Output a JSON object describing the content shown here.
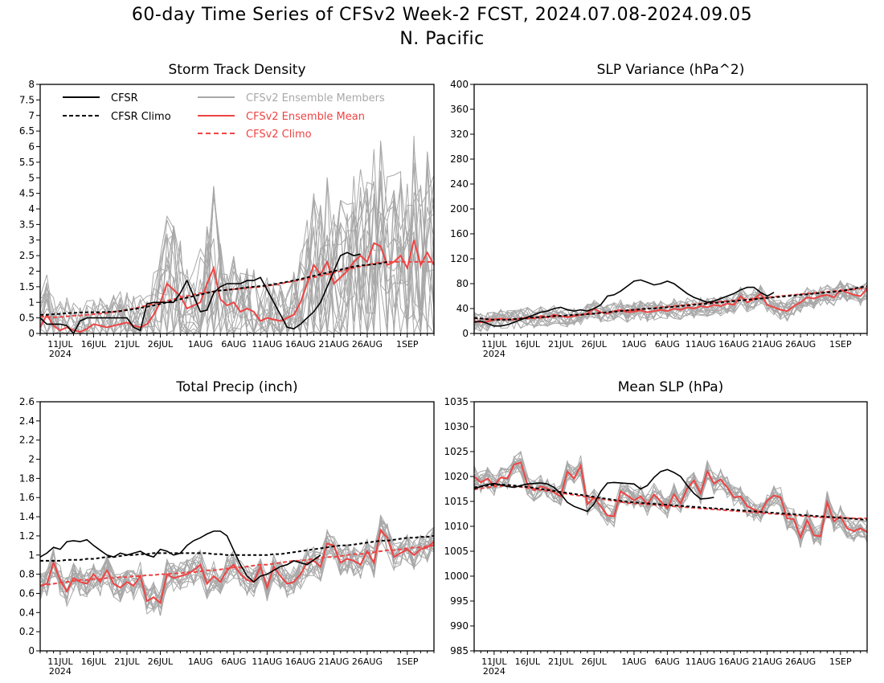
{
  "header": {
    "title": "60-day Time Series of CFSv2 Week-2 FCST, 2024.07.08-2024.09.05",
    "subtitle": "N. Pacific"
  },
  "colors": {
    "obs": "#000000",
    "members": "#a8a8a8",
    "mean": "#ee4444",
    "climo_model": "#ee4444",
    "climo_obs": "#000000"
  },
  "chart_data": [
    {
      "type": "line",
      "title": "Storm Track Density",
      "x_date_ticks": [
        "11JUL",
        "16JUL",
        "21JUL",
        "26JUL",
        "1AUG",
        "6AUG",
        "11AUG",
        "16AUG",
        "21AUG",
        "26AUG",
        "1SEP"
      ],
      "x_year_label": "2024",
      "xlim": [
        "2024-07-08",
        "2024-09-05"
      ],
      "ylim": [
        0,
        8
      ],
      "yticks": [
        "0",
        "0.5",
        "1",
        "1.5",
        "2",
        "2.5",
        "3",
        "3.5",
        "4",
        "4.5",
        "5",
        "5.5",
        "6",
        "6.5",
        "7",
        "7.5",
        "8"
      ],
      "legend": {
        "placement": "top-left",
        "entries": [
          {
            "label": "CFSR",
            "key": "obs"
          },
          {
            "label": "CFSR Climo",
            "key": "climo_obs"
          },
          {
            "label": "CFSv2 Ensemble Members",
            "key": "members"
          },
          {
            "label": "CFSv2 Ensemble Mean",
            "key": "mean"
          },
          {
            "label": "CFSv2 Climo",
            "key": "climo_model"
          }
        ]
      },
      "series": {
        "obs": [
          0.5,
          0.3,
          0.3,
          0.3,
          0.25,
          0.0,
          0.4,
          0.5,
          0.5,
          0.5,
          0.5,
          0.5,
          0.5,
          0.5,
          0.2,
          0.1,
          0.95,
          1.0,
          1.0,
          1.0,
          1.0,
          1.3,
          1.7,
          1.2,
          0.7,
          0.75,
          1.3,
          1.5,
          1.6,
          1.6,
          1.6,
          1.7,
          1.7,
          1.8,
          1.4,
          1.0,
          0.6,
          0.2,
          0.15,
          0.3,
          0.5,
          0.7,
          1.0,
          1.5,
          2.0,
          2.5,
          2.6,
          2.5,
          2.55
        ],
        "obs_climo": [
          0.6,
          0.6,
          0.62,
          0.63,
          0.65,
          0.66,
          0.67,
          0.68,
          0.68,
          0.68,
          0.69,
          0.7,
          0.72,
          0.75,
          0.78,
          0.82,
          0.86,
          0.9,
          0.95,
          1.0,
          1.05,
          1.1,
          1.15,
          1.2,
          1.25,
          1.3,
          1.35,
          1.38,
          1.4,
          1.42,
          1.45,
          1.48,
          1.5,
          1.52,
          1.55,
          1.58,
          1.62,
          1.66,
          1.7,
          1.75,
          1.8,
          1.85,
          1.9,
          1.95,
          2.0,
          2.05,
          2.1,
          2.15,
          2.18,
          2.2,
          2.22,
          2.25,
          2.3
        ],
        "model_climo": [
          0.55,
          0.53,
          0.52,
          0.53,
          0.55,
          0.57,
          0.58,
          0.6,
          0.62,
          0.64,
          0.66,
          0.69,
          0.72,
          0.76,
          0.8,
          0.85,
          0.9,
          0.95,
          1.0,
          1.05,
          1.1,
          1.15,
          1.2,
          1.25,
          1.29,
          1.32,
          1.35,
          1.38,
          1.4,
          1.42,
          1.44,
          1.46,
          1.48,
          1.5,
          1.53,
          1.56,
          1.6,
          1.64,
          1.68,
          1.72,
          1.76,
          1.8,
          1.85,
          1.9,
          1.95,
          2.0,
          2.05,
          2.1,
          2.15,
          2.2,
          2.25,
          2.28,
          2.3,
          2.3,
          2.3,
          2.3,
          2.3,
          2.3,
          2.3,
          2.3
        ],
        "ens_mean": [
          0.2,
          0.6,
          0.25,
          0.1,
          0.2,
          0.1,
          0.05,
          0.15,
          0.3,
          0.25,
          0.2,
          0.25,
          0.3,
          0.35,
          0.25,
          0.2,
          0.3,
          0.6,
          1.0,
          1.6,
          1.4,
          1.2,
          0.8,
          0.9,
          1.0,
          1.6,
          2.1,
          1.1,
          0.9,
          1.0,
          0.7,
          0.8,
          0.7,
          0.4,
          0.5,
          0.45,
          0.4,
          0.5,
          0.6,
          1.0,
          1.6,
          2.2,
          1.9,
          2.3,
          1.6,
          1.8,
          2.0,
          2.3,
          2.5,
          2.3,
          2.9,
          2.8,
          2.2,
          2.3,
          2.5,
          2.1,
          3.0,
          2.2,
          2.6,
          2.2
        ]
      }
    },
    {
      "type": "line",
      "title": "SLP Variance (hPa^2)",
      "x_date_ticks": [
        "11JUL",
        "16JUL",
        "21JUL",
        "26JUL",
        "1AUG",
        "6AUG",
        "11AUG",
        "16AUG",
        "21AUG",
        "26AUG",
        "1SEP"
      ],
      "x_year_label": "2024",
      "xlim": [
        "2024-07-08",
        "2024-09-05"
      ],
      "ylim": [
        0,
        400
      ],
      "yticks": [
        "0",
        "40",
        "80",
        "120",
        "160",
        "200",
        "240",
        "280",
        "320",
        "360",
        "400"
      ],
      "series": {
        "obs": [
          18,
          20,
          16,
          12,
          12,
          14,
          18,
          22,
          26,
          30,
          34,
          36,
          40,
          42,
          38,
          36,
          38,
          36,
          40,
          46,
          60,
          62,
          68,
          76,
          84,
          86,
          82,
          78,
          80,
          84,
          80,
          72,
          64,
          58,
          54,
          50,
          52,
          56,
          60,
          64,
          70,
          74,
          74,
          66,
          60,
          66
        ],
        "obs_climo": [
          25,
          24,
          23,
          22,
          22,
          22,
          23,
          24,
          25,
          26,
          26,
          27,
          28,
          28,
          29,
          30,
          30,
          31,
          32,
          33,
          34,
          35,
          36,
          37,
          38,
          39,
          40,
          40,
          41,
          42,
          43,
          44,
          45,
          46,
          47,
          48,
          49,
          50,
          51,
          52,
          53,
          54,
          55,
          56,
          57,
          58,
          59,
          60,
          61,
          62,
          63,
          64,
          65,
          66,
          67,
          68,
          70,
          72,
          74,
          76
        ],
        "model_climo": [
          24,
          24,
          23,
          23,
          23,
          23,
          23,
          24,
          24,
          25,
          25,
          26,
          27,
          28,
          28,
          29,
          30,
          31,
          32,
          33,
          34,
          35,
          36,
          37,
          38,
          39,
          40,
          41,
          42,
          43,
          44,
          45,
          46,
          47,
          48,
          49,
          50,
          51,
          52,
          53,
          54,
          55,
          56,
          57,
          58,
          59,
          60,
          61,
          62,
          63,
          64,
          65,
          66,
          67,
          68,
          69,
          70,
          71,
          72,
          73
        ],
        "ens_mean": [
          20,
          18,
          19,
          22,
          24,
          22,
          22,
          24,
          26,
          24,
          28,
          26,
          30,
          28,
          26,
          28,
          30,
          32,
          40,
          34,
          32,
          36,
          38,
          34,
          35,
          37,
          34,
          36,
          38,
          36,
          40,
          38,
          42,
          40,
          44,
          42,
          46,
          44,
          48,
          46,
          60,
          50,
          55,
          64,
          46,
          42,
          38,
          36,
          44,
          50,
          58,
          56,
          60,
          62,
          58,
          70,
          66,
          62,
          60,
          72
        ]
      }
    },
    {
      "type": "line",
      "title": "Total Precip (inch)",
      "x_date_ticks": [
        "11JUL",
        "16JUL",
        "21JUL",
        "26JUL",
        "1AUG",
        "6AUG",
        "11AUG",
        "16AUG",
        "21AUG",
        "26AUG",
        "1SEP"
      ],
      "x_year_label": "2024",
      "xlim": [
        "2024-07-08",
        "2024-09-05"
      ],
      "ylim": [
        0,
        2.6
      ],
      "yticks": [
        "0",
        "0.2",
        "0.4",
        "0.6",
        "0.8",
        "1",
        "1.2",
        "1.4",
        "1.6",
        "1.8",
        "2",
        "2.2",
        "2.4",
        "2.6"
      ],
      "series": {
        "obs": [
          0.98,
          1.02,
          1.08,
          1.06,
          1.14,
          1.15,
          1.14,
          1.16,
          1.1,
          1.05,
          1.0,
          0.98,
          1.02,
          1.0,
          1.02,
          1.04,
          1.0,
          0.98,
          1.06,
          1.04,
          1.0,
          1.02,
          1.1,
          1.15,
          1.18,
          1.22,
          1.25,
          1.25,
          1.2,
          1.05,
          0.9,
          0.78,
          0.72,
          0.78,
          0.8,
          0.84,
          0.88,
          0.9,
          0.94,
          0.92,
          0.9,
          0.95,
          1.0
        ],
        "obs_climo": [
          0.94,
          0.94,
          0.94,
          0.94,
          0.95,
          0.95,
          0.95,
          0.96,
          0.96,
          0.97,
          0.98,
          0.98,
          0.99,
          1.0,
          1.0,
          1.01,
          1.01,
          1.02,
          1.02,
          1.02,
          1.02,
          1.02,
          1.02,
          1.02,
          1.02,
          1.02,
          1.01,
          1.01,
          1.0,
          1.0,
          1.0,
          1.0,
          1.0,
          1.0,
          1.0,
          1.01,
          1.01,
          1.02,
          1.03,
          1.04,
          1.05,
          1.06,
          1.07,
          1.08,
          1.09,
          1.1,
          1.1,
          1.11,
          1.12,
          1.13,
          1.14,
          1.15,
          1.15,
          1.16,
          1.17,
          1.18,
          1.18,
          1.19,
          1.19,
          1.2
        ],
        "model_climo": [
          0.68,
          0.69,
          0.7,
          0.71,
          0.72,
          0.73,
          0.74,
          0.74,
          0.75,
          0.75,
          0.76,
          0.76,
          0.77,
          0.77,
          0.78,
          0.78,
          0.79,
          0.79,
          0.8,
          0.8,
          0.81,
          0.81,
          0.82,
          0.82,
          0.83,
          0.84,
          0.84,
          0.85,
          0.86,
          0.87,
          0.87,
          0.88,
          0.89,
          0.9,
          0.9,
          0.91,
          0.92,
          0.93,
          0.94,
          0.94,
          0.95,
          0.96,
          0.97,
          0.98,
          0.98,
          0.99,
          1.0,
          1.01,
          1.01,
          1.02,
          1.03,
          1.04,
          1.05,
          1.05,
          1.06,
          1.07,
          1.08,
          1.08,
          1.09,
          1.1
        ],
        "ens_mean": [
          0.68,
          0.7,
          0.92,
          0.74,
          0.62,
          0.76,
          0.72,
          0.7,
          0.8,
          0.72,
          0.84,
          0.7,
          0.66,
          0.72,
          0.68,
          0.78,
          0.52,
          0.56,
          0.5,
          0.8,
          0.76,
          0.78,
          0.8,
          0.84,
          0.9,
          0.7,
          0.78,
          0.72,
          0.84,
          0.9,
          0.8,
          0.74,
          0.72,
          0.88,
          0.66,
          0.88,
          0.78,
          0.7,
          0.72,
          0.8,
          0.92,
          0.94,
          0.88,
          1.12,
          1.1,
          0.92,
          0.96,
          0.94,
          0.9,
          1.04,
          0.92,
          1.26,
          1.18,
          0.98,
          1.02,
          1.06,
          1.0,
          1.06,
          1.08,
          1.14
        ]
      }
    },
    {
      "type": "line",
      "title": "Mean SLP (hPa)",
      "x_date_ticks": [
        "11JUL",
        "16JUL",
        "21JUL",
        "26JUL",
        "1AUG",
        "6AUG",
        "11AUG",
        "16AUG",
        "21AUG",
        "26AUG",
        "1SEP"
      ],
      "x_year_label": "2024",
      "xlim": [
        "2024-07-08",
        "2024-09-05"
      ],
      "ylim": [
        985,
        1035
      ],
      "yticks": [
        "985",
        "990",
        "995",
        "1000",
        "1005",
        "1010",
        "1015",
        "1020",
        "1025",
        "1030",
        "1035"
      ],
      "series": {
        "obs": [
          1017.5,
          1018.0,
          1018.4,
          1018.6,
          1018.3,
          1018.0,
          1017.8,
          1018.2,
          1018.5,
          1018.6,
          1018.7,
          1018.5,
          1017.8,
          1016.5,
          1014.8,
          1014.0,
          1013.5,
          1013.0,
          1014.5,
          1017.0,
          1018.7,
          1018.8,
          1018.7,
          1018.6,
          1018.5,
          1017.5,
          1018.2,
          1019.8,
          1021.0,
          1021.4,
          1020.8,
          1020.0,
          1018.2,
          1016.6,
          1015.5,
          1015.6,
          1015.8
        ],
        "obs_climo": [
          1017.8,
          1018.0,
          1018.2,
          1018.3,
          1018.4,
          1018.3,
          1018.2,
          1018.0,
          1017.9,
          1017.7,
          1017.5,
          1017.3,
          1017.1,
          1016.9,
          1016.7,
          1016.5,
          1016.3,
          1016.1,
          1015.9,
          1015.7,
          1015.5,
          1015.3,
          1015.1,
          1014.9,
          1014.8,
          1014.7,
          1014.6,
          1014.5,
          1014.4,
          1014.3,
          1014.2,
          1014.1,
          1014.0,
          1013.9,
          1013.8,
          1013.7,
          1013.6,
          1013.5,
          1013.4,
          1013.3,
          1013.2,
          1013.1,
          1013.0,
          1012.9,
          1012.8,
          1012.7,
          1012.6,
          1012.5,
          1012.4,
          1012.3,
          1012.2,
          1012.1,
          1012.0,
          1011.9,
          1011.8,
          1011.7,
          1011.6,
          1011.5,
          1011.4,
          1011.3
        ],
        "model_climo": [
          1017.4,
          1017.6,
          1017.8,
          1018.0,
          1018.1,
          1018.1,
          1018.0,
          1017.9,
          1017.7,
          1017.5,
          1017.3,
          1017.1,
          1016.9,
          1016.7,
          1016.5,
          1016.3,
          1016.1,
          1015.9,
          1015.7,
          1015.5,
          1015.3,
          1015.1,
          1014.9,
          1014.7,
          1014.6,
          1014.5,
          1014.4,
          1014.3,
          1014.2,
          1014.1,
          1014.0,
          1013.9,
          1013.8,
          1013.7,
          1013.6,
          1013.5,
          1013.4,
          1013.3,
          1013.2,
          1013.1,
          1013.0,
          1012.9,
          1012.8,
          1012.7,
          1012.6,
          1012.5,
          1012.4,
          1012.3,
          1012.2,
          1012.1,
          1012.0,
          1011.9,
          1011.8,
          1011.8,
          1011.7,
          1011.7,
          1011.7,
          1011.6,
          1011.6,
          1011.6
        ],
        "ens_mean": [
          1020.0,
          1018.8,
          1019.6,
          1018.2,
          1019.8,
          1019.6,
          1022.4,
          1022.8,
          1018.4,
          1017.2,
          1018.0,
          1017.6,
          1016.8,
          1016.0,
          1021.0,
          1019.6,
          1022.2,
          1014.4,
          1015.8,
          1014.0,
          1012.2,
          1012.0,
          1017.0,
          1016.2,
          1015.2,
          1016.0,
          1014.4,
          1016.4,
          1015.0,
          1013.6,
          1016.4,
          1014.6,
          1017.6,
          1019.2,
          1016.6,
          1021.0,
          1018.6,
          1019.4,
          1017.8,
          1015.8,
          1016.0,
          1014.0,
          1013.4,
          1012.8,
          1015.2,
          1016.2,
          1015.8,
          1011.6,
          1011.4,
          1007.8,
          1011.2,
          1008.2,
          1008.0,
          1014.8,
          1011.0,
          1012.0,
          1009.6,
          1009.0,
          1009.6,
          1008.8
        ]
      }
    }
  ]
}
